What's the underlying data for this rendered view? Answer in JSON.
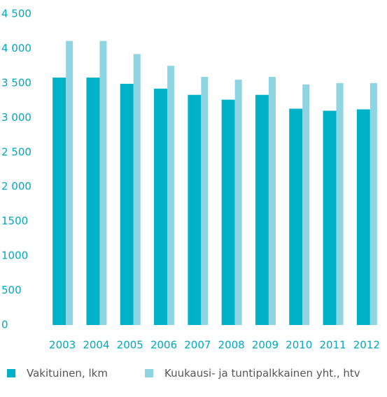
{
  "chart_data": {
    "type": "bar",
    "categories": [
      "2003",
      "2004",
      "2005",
      "2006",
      "2007",
      "2008",
      "2009",
      "2010",
      "2011",
      "2012"
    ],
    "series": [
      {
        "name": "Vakituinen, lkm",
        "color": "#00b2c9",
        "values": [
          3580,
          3580,
          3490,
          3420,
          3330,
          3260,
          3330,
          3130,
          3100,
          3120
        ]
      },
      {
        "name": "Kuukausi- ja tuntipalkkainen yht., htv",
        "color": "#8fd4e1",
        "values": [
          4110,
          4110,
          3920,
          3750,
          3590,
          3550,
          3590,
          3480,
          3500,
          3500
        ]
      }
    ],
    "ylim": [
      0,
      4500
    ],
    "yticks": [
      0,
      500,
      {
        "value": 1000,
        "label": "1000"
      },
      {
        "value": 1500,
        "label": "1500"
      },
      {
        "value": 2000,
        "label": "2 000"
      },
      {
        "value": 2500,
        "label": "2 500"
      },
      {
        "value": 3000,
        "label": "3 000"
      },
      {
        "value": 3500,
        "label": "3 500"
      },
      {
        "value": 4000,
        "label": "4 000"
      },
      {
        "value": 4500,
        "label": "4 500"
      }
    ],
    "legend": "bottom"
  }
}
